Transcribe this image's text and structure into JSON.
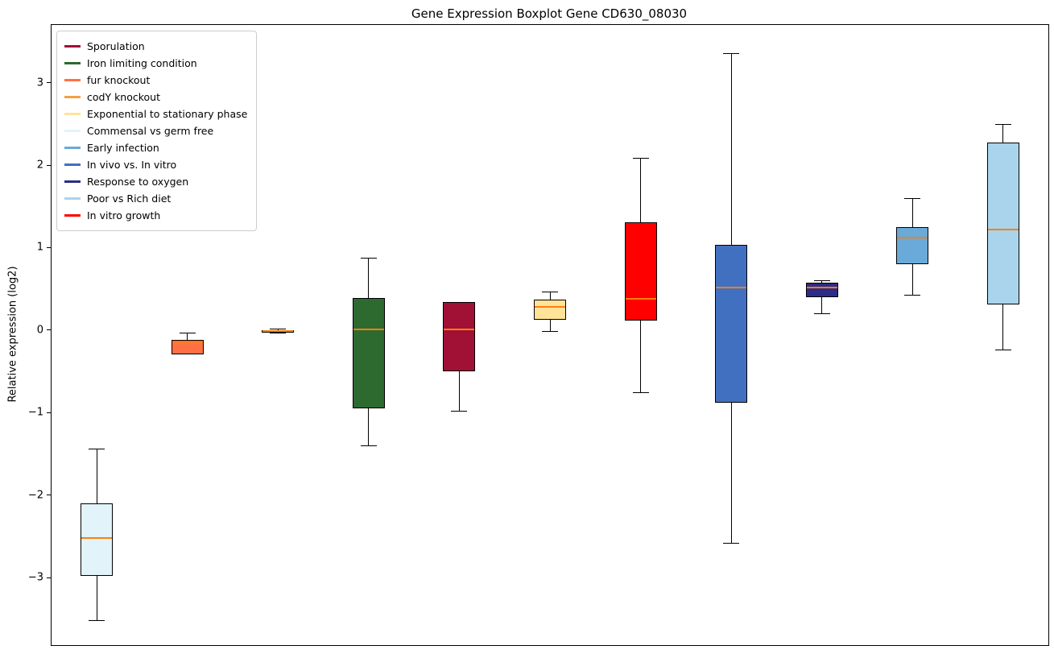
{
  "chart_data": {
    "type": "boxplot",
    "title": "Gene Expression Boxplot Gene CD630_08030",
    "ylabel": "Relative expression (log2)",
    "xlabel": "",
    "ylim": [
      -3.82,
      3.7
    ],
    "yticks": [
      3,
      2,
      1,
      0,
      -1,
      -2,
      -3
    ],
    "grid": false,
    "legend_position": "upper left",
    "median_color": "#ff7f0e",
    "box_edge_color": "#000000",
    "legend": [
      {
        "label": "Sporulation",
        "color": "#a11035"
      },
      {
        "label": "Iron limiting condition",
        "color": "#2d6a2f"
      },
      {
        "label": "fur knockout",
        "color": "#ff7045"
      },
      {
        "label": "codY knockout",
        "color": "#f2a044"
      },
      {
        "label": "Exponential to stationary phase",
        "color": "#ffe399"
      },
      {
        "label": "Commensal vs germ free",
        "color": "#e2f3fa"
      },
      {
        "label": "Early infection",
        "color": "#6aaad8"
      },
      {
        "label": "In vivo vs. In vitro",
        "color": "#4170c0"
      },
      {
        "label": "Response to oxygen",
        "color": "#2d2c87"
      },
      {
        "label": "Poor vs Rich diet",
        "color": "#a9d4ec"
      },
      {
        "label": "In vitro growth",
        "color": "#ff0000"
      }
    ],
    "boxes": [
      {
        "condition": "Commensal vs germ free",
        "color": "#e2f3fa",
        "whisker_low": -3.52,
        "q1": -2.98,
        "median": -2.52,
        "q3": -2.1,
        "whisker_high": -1.44
      },
      {
        "condition": "fur knockout",
        "color": "#ff7045",
        "whisker_low": -0.29,
        "q1": -0.29,
        "median": -0.16,
        "q3": -0.12,
        "whisker_high": -0.04
      },
      {
        "condition": "codY knockout",
        "color": "#f2a044",
        "whisker_low": -0.04,
        "q1": -0.03,
        "median": -0.01,
        "q3": 0.0,
        "whisker_high": 0.01
      },
      {
        "condition": "Iron limiting condition",
        "color": "#2d6a2f",
        "whisker_low": -1.4,
        "q1": -0.95,
        "median": 0.01,
        "q3": 0.39,
        "whisker_high": 0.87
      },
      {
        "condition": "Sporulation",
        "color": "#a11035",
        "whisker_low": -0.98,
        "q1": -0.5,
        "median": 0.01,
        "q3": 0.34,
        "whisker_high": 0.34
      },
      {
        "condition": "Exponential to stationary phase",
        "color": "#ffe399",
        "whisker_low": -0.02,
        "q1": 0.13,
        "median": 0.28,
        "q3": 0.37,
        "whisker_high": 0.46
      },
      {
        "condition": "In vitro growth",
        "color": "#ff0000",
        "whisker_low": -0.76,
        "q1": 0.12,
        "median": 0.38,
        "q3": 1.31,
        "whisker_high": 2.08
      },
      {
        "condition": "In vivo vs. In vitro",
        "color": "#4170c0",
        "whisker_low": -2.58,
        "q1": -0.88,
        "median": 0.52,
        "q3": 1.03,
        "whisker_high": 3.35
      },
      {
        "condition": "Response to oxygen",
        "color": "#2d2c87",
        "whisker_low": 0.2,
        "q1": 0.4,
        "median": 0.52,
        "q3": 0.57,
        "whisker_high": 0.6
      },
      {
        "condition": "Early infection",
        "color": "#6aaad8",
        "whisker_low": 0.42,
        "q1": 0.8,
        "median": 1.12,
        "q3": 1.25,
        "whisker_high": 1.6
      },
      {
        "condition": "Poor vs Rich diet",
        "color": "#a9d4ec",
        "whisker_low": -0.24,
        "q1": 0.31,
        "median": 1.22,
        "q3": 2.27,
        "whisker_high": 2.49
      }
    ]
  }
}
